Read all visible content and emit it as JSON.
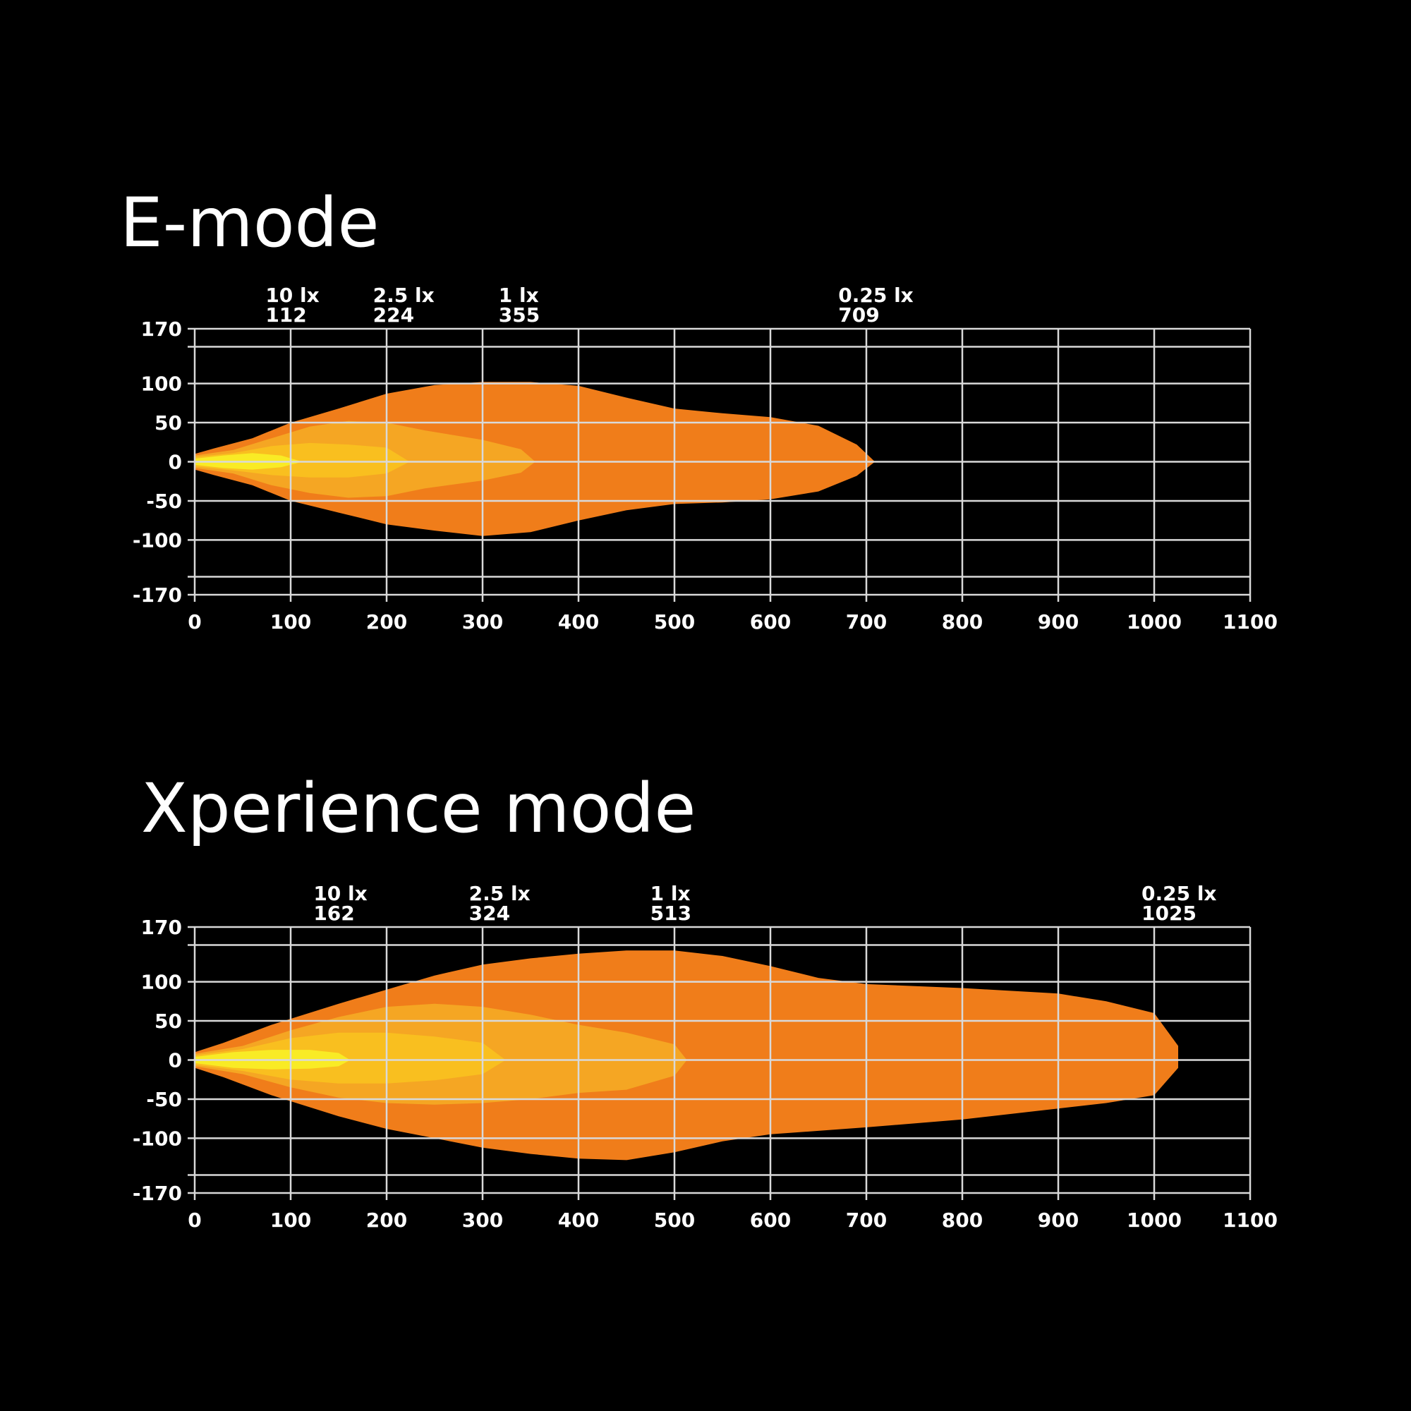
{
  "chart_data": [
    {
      "type": "area",
      "title": "E-mode",
      "xlim": [
        0,
        1100
      ],
      "ylim": [
        -170,
        170
      ],
      "x_ticks": [
        0,
        100,
        200,
        300,
        400,
        500,
        600,
        700,
        800,
        900,
        1000,
        1100
      ],
      "y_ticks": [
        170,
        100,
        50,
        0,
        -50,
        -100,
        -170
      ],
      "grid": true,
      "series": [
        {
          "lux": "0.25 lx",
          "color": "#F07D1A",
          "upper": [
            [
              0,
              10
            ],
            [
              20,
              17
            ],
            [
              60,
              30
            ],
            [
              100,
              50
            ],
            [
              150,
              68
            ],
            [
              200,
              87
            ],
            [
              250,
              98
            ],
            [
              300,
              102
            ],
            [
              350,
              102
            ],
            [
              400,
              97
            ],
            [
              450,
              82
            ],
            [
              500,
              68
            ],
            [
              550,
              62
            ],
            [
              600,
              57
            ],
            [
              650,
              46
            ],
            [
              690,
              22
            ],
            [
              709,
              0
            ]
          ],
          "lower": [
            [
              0,
              -10
            ],
            [
              20,
              -17
            ],
            [
              60,
              -30
            ],
            [
              100,
              -50
            ],
            [
              150,
              -65
            ],
            [
              200,
              -80
            ],
            [
              250,
              -88
            ],
            [
              300,
              -95
            ],
            [
              350,
              -90
            ],
            [
              400,
              -75
            ],
            [
              450,
              -62
            ],
            [
              500,
              -54
            ],
            [
              550,
              -52
            ],
            [
              600,
              -48
            ],
            [
              650,
              -38
            ],
            [
              690,
              -18
            ],
            [
              709,
              0
            ]
          ]
        },
        {
          "lux": "1 lx",
          "color": "#F5A623",
          "upper": [
            [
              0,
              8
            ],
            [
              40,
              15
            ],
            [
              80,
              30
            ],
            [
              120,
              45
            ],
            [
              160,
              52
            ],
            [
              200,
              50
            ],
            [
              240,
              40
            ],
            [
              300,
              28
            ],
            [
              340,
              16
            ],
            [
              355,
              0
            ]
          ],
          "lower": [
            [
              0,
              -8
            ],
            [
              40,
              -15
            ],
            [
              80,
              -30
            ],
            [
              120,
              -40
            ],
            [
              160,
              -46
            ],
            [
              200,
              -44
            ],
            [
              240,
              -34
            ],
            [
              300,
              -24
            ],
            [
              340,
              -14
            ],
            [
              355,
              0
            ]
          ]
        },
        {
          "lux": "2.5 lx",
          "color": "#F9BF1F",
          "upper": [
            [
              0,
              6
            ],
            [
              40,
              11
            ],
            [
              80,
              20
            ],
            [
              120,
              24
            ],
            [
              160,
              22
            ],
            [
              200,
              18
            ],
            [
              224,
              0
            ]
          ],
          "lower": [
            [
              0,
              -6
            ],
            [
              40,
              -11
            ],
            [
              80,
              -17
            ],
            [
              120,
              -20
            ],
            [
              160,
              -20
            ],
            [
              200,
              -15
            ],
            [
              224,
              0
            ]
          ]
        },
        {
          "lux": "10 lx",
          "color": "#F9EB25",
          "upper": [
            [
              0,
              4
            ],
            [
              30,
              8
            ],
            [
              60,
              11
            ],
            [
              90,
              8
            ],
            [
              112,
              0
            ]
          ],
          "lower": [
            [
              0,
              -4
            ],
            [
              30,
              -8
            ],
            [
              60,
              -10
            ],
            [
              90,
              -7
            ],
            [
              112,
              0
            ]
          ]
        }
      ],
      "annotations": [
        {
          "lux": "10 lx",
          "distance": "112",
          "x": 112
        },
        {
          "lux": "2.5 lx",
          "distance": "224",
          "x": 224
        },
        {
          "lux": "1 lx",
          "distance": "355",
          "x": 355
        },
        {
          "lux": "0.25 lx",
          "distance": "709",
          "x": 709
        }
      ]
    },
    {
      "type": "area",
      "title": "Xperience mode",
      "xlim": [
        0,
        1100
      ],
      "ylim": [
        -170,
        170
      ],
      "x_ticks": [
        0,
        100,
        200,
        300,
        400,
        500,
        600,
        700,
        800,
        900,
        1000,
        1100
      ],
      "y_ticks": [
        170,
        100,
        50,
        0,
        -50,
        -100,
        -170
      ],
      "grid": true,
      "series": [
        {
          "lux": "0.25 lx",
          "color": "#F07D1A",
          "upper": [
            [
              0,
              10
            ],
            [
              30,
              22
            ],
            [
              80,
              45
            ],
            [
              150,
              72
            ],
            [
              200,
              90
            ],
            [
              250,
              108
            ],
            [
              300,
              122
            ],
            [
              350,
              130
            ],
            [
              400,
              136
            ],
            [
              450,
              140
            ],
            [
              500,
              140
            ],
            [
              550,
              133
            ],
            [
              600,
              120
            ],
            [
              650,
              105
            ],
            [
              700,
              97
            ],
            [
              800,
              92
            ],
            [
              900,
              85
            ],
            [
              950,
              75
            ],
            [
              1000,
              60
            ],
            [
              1025,
              18
            ],
            [
              1025,
              0
            ]
          ],
          "lower": [
            [
              0,
              -10
            ],
            [
              30,
              -22
            ],
            [
              80,
              -45
            ],
            [
              150,
              -72
            ],
            [
              200,
              -88
            ],
            [
              250,
              -100
            ],
            [
              300,
              -112
            ],
            [
              350,
              -120
            ],
            [
              400,
              -126
            ],
            [
              450,
              -128
            ],
            [
              500,
              -118
            ],
            [
              550,
              -104
            ],
            [
              600,
              -95
            ],
            [
              700,
              -86
            ],
            [
              800,
              -76
            ],
            [
              900,
              -62
            ],
            [
              950,
              -55
            ],
            [
              1000,
              -45
            ],
            [
              1025,
              -10
            ],
            [
              1025,
              0
            ]
          ]
        },
        {
          "lux": "1 lx",
          "color": "#F5A623",
          "upper": [
            [
              0,
              8
            ],
            [
              50,
              18
            ],
            [
              100,
              38
            ],
            [
              150,
              55
            ],
            [
              200,
              68
            ],
            [
              250,
              72
            ],
            [
              300,
              68
            ],
            [
              350,
              58
            ],
            [
              400,
              45
            ],
            [
              450,
              35
            ],
            [
              500,
              20
            ],
            [
              513,
              0
            ]
          ],
          "lower": [
            [
              0,
              -8
            ],
            [
              50,
              -18
            ],
            [
              100,
              -35
            ],
            [
              150,
              -48
            ],
            [
              200,
              -55
            ],
            [
              250,
              -57
            ],
            [
              300,
              -55
            ],
            [
              350,
              -50
            ],
            [
              400,
              -42
            ],
            [
              450,
              -38
            ],
            [
              500,
              -20
            ],
            [
              513,
              0
            ]
          ]
        },
        {
          "lux": "2.5 lx",
          "color": "#F9BF1F",
          "upper": [
            [
              0,
              6
            ],
            [
              50,
              14
            ],
            [
              100,
              28
            ],
            [
              150,
              35
            ],
            [
              200,
              35
            ],
            [
              250,
              30
            ],
            [
              300,
              22
            ],
            [
              324,
              0
            ]
          ],
          "lower": [
            [
              0,
              -6
            ],
            [
              50,
              -14
            ],
            [
              100,
              -25
            ],
            [
              150,
              -30
            ],
            [
              200,
              -30
            ],
            [
              250,
              -26
            ],
            [
              300,
              -18
            ],
            [
              324,
              0
            ]
          ]
        },
        {
          "lux": "10 lx",
          "color": "#F9EB25",
          "upper": [
            [
              0,
              4
            ],
            [
              40,
              10
            ],
            [
              80,
              13
            ],
            [
              120,
              13
            ],
            [
              150,
              9
            ],
            [
              162,
              0
            ]
          ],
          "lower": [
            [
              0,
              -4
            ],
            [
              40,
              -10
            ],
            [
              80,
              -12
            ],
            [
              120,
              -11
            ],
            [
              150,
              -8
            ],
            [
              162,
              0
            ]
          ]
        }
      ],
      "annotations": [
        {
          "lux": "10 lx",
          "distance": "162",
          "x": 162
        },
        {
          "lux": "2.5 lx",
          "distance": "324",
          "x": 324
        },
        {
          "lux": "1 lx",
          "distance": "513",
          "x": 513
        },
        {
          "lux": "0.25 lx",
          "distance": "1025",
          "x": 1025
        }
      ]
    }
  ]
}
